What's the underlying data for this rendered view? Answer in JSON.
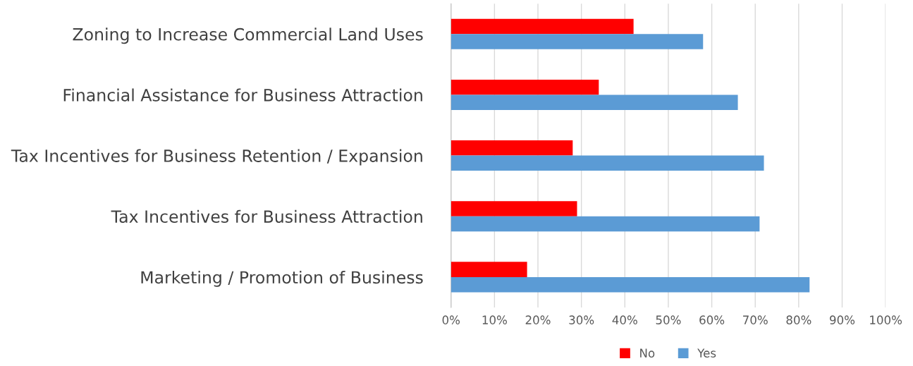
{
  "chart_data": {
    "type": "bar",
    "orientation": "horizontal",
    "categories": [
      "Zoning to Increase Commercial Land Uses",
      "Financial Assistance for Business Attraction",
      "Tax Incentives for Business Retention / Expansion",
      "Tax Incentives for Business Attraction",
      "Marketing / Promotion of Business"
    ],
    "series": [
      {
        "name": "No",
        "color": "#ff0000",
        "values": [
          42,
          34,
          28,
          29,
          17.5
        ]
      },
      {
        "name": "Yes",
        "color": "#5b9bd5",
        "values": [
          58,
          66,
          72,
          71,
          82.5
        ]
      }
    ],
    "xlim": [
      0,
      100
    ],
    "xticks": [
      {
        "value": 0,
        "label": "0%"
      },
      {
        "value": 10,
        "label": "10%"
      },
      {
        "value": 20,
        "label": "20%"
      },
      {
        "value": 30,
        "label": "30%"
      },
      {
        "value": 40,
        "label": "40%"
      },
      {
        "value": 50,
        "label": "50%"
      },
      {
        "value": 60,
        "label": "60%"
      },
      {
        "value": 70,
        "label": "70%"
      },
      {
        "value": 80,
        "label": "80%"
      },
      {
        "value": 90,
        "label": "90%"
      },
      {
        "value": 100,
        "label": "100%"
      }
    ],
    "grid": "x",
    "legend": "bottom"
  }
}
